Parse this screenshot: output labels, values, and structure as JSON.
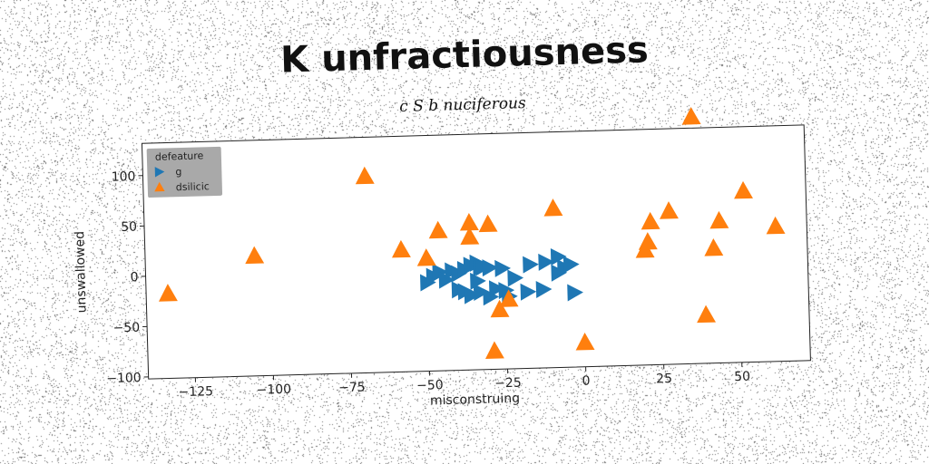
{
  "title": "K unfractiousness",
  "subtitle": "c S b nuciferous",
  "chart_data": {
    "type": "scatter",
    "xlabel": "misconstruing",
    "ylabel": "unswallowed",
    "xlim": [
      -140,
      72
    ],
    "ylim": [
      -102,
      132
    ],
    "xticks": [
      -125,
      -100,
      -75,
      -50,
      -25,
      0,
      25,
      50
    ],
    "yticks": [
      -100,
      -50,
      0,
      50,
      100
    ],
    "xtick_labels": [
      "−125",
      "−100",
      "−75",
      "−50",
      "−25",
      "0",
      "25",
      "50"
    ],
    "ytick_labels": [
      "−100",
      "−50",
      "0",
      "50",
      "100"
    ],
    "grid": false,
    "legend": {
      "title": "defeature",
      "placement": "top-left"
    },
    "series": [
      {
        "name": "g",
        "marker": "triangle-right",
        "color": "#1f77b4",
        "points": [
          [
            -50,
            -14
          ],
          [
            -48,
            -8
          ],
          [
            -46,
            -4
          ],
          [
            -44,
            -12
          ],
          [
            -42,
            -3
          ],
          [
            -40,
            -6
          ],
          [
            -38,
            -2
          ],
          [
            -36,
            2
          ],
          [
            -34,
            4
          ],
          [
            -33,
            -1
          ],
          [
            -32,
            0
          ],
          [
            -30,
            -1
          ],
          [
            -26,
            -2
          ],
          [
            -40,
            -22
          ],
          [
            -38,
            -24
          ],
          [
            -36,
            -28
          ],
          [
            -33,
            -25
          ],
          [
            -30,
            -30
          ],
          [
            -28,
            -22
          ],
          [
            -25,
            -24
          ],
          [
            -24,
            -30
          ],
          [
            -22,
            -12
          ],
          [
            -18,
            -26
          ],
          [
            -13,
            -24
          ],
          [
            -17,
            1
          ],
          [
            -12,
            3
          ],
          [
            -8,
            -8
          ],
          [
            -6,
            -3
          ],
          [
            -4,
            0
          ],
          [
            -8,
            8
          ],
          [
            -3,
            -28
          ],
          [
            -34,
            -14
          ]
        ]
      },
      {
        "name": "dsilicic",
        "marker": "triangle-up",
        "color": "#ff7f0e",
        "points": [
          [
            -133,
            -18
          ],
          [
            -105,
            17
          ],
          [
            -69,
            93
          ],
          [
            -58,
            19
          ],
          [
            -50,
            10
          ],
          [
            -46,
            37
          ],
          [
            -36,
            44
          ],
          [
            -36,
            30
          ],
          [
            -30,
            42
          ],
          [
            -27,
            -43
          ],
          [
            -24,
            -33
          ],
          [
            -29,
            -84
          ],
          [
            -9,
            56
          ],
          [
            0,
            -78
          ],
          [
            20,
            12
          ],
          [
            21,
            20
          ],
          [
            22,
            40
          ],
          [
            28,
            50
          ],
          [
            36,
            143
          ],
          [
            39,
            -54
          ],
          [
            42,
            12
          ],
          [
            44,
            39
          ],
          [
            52,
            68
          ],
          [
            62,
            32
          ]
        ]
      }
    ]
  }
}
